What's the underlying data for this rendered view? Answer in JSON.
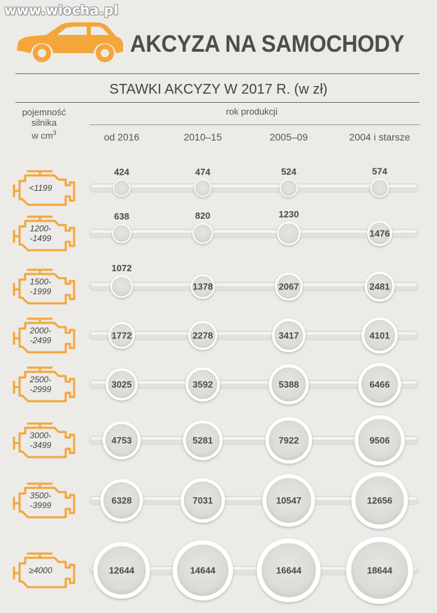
{
  "watermark": "www.wiocha.pl",
  "title": "AKCYZA NA SAMOCHODY",
  "subtitle": "STAWKI AKCYZY W 2017 R. (w zł)",
  "row_header": {
    "line1": "pojemność",
    "line2": "silnika",
    "line3": "w cm",
    "superscript": "3"
  },
  "column_group_header": "rok produkcji",
  "colors": {
    "accent": "#f4a63a",
    "background": "#ecebe8",
    "track": "#e2e1de",
    "bubble": "#e6e5e2",
    "bubble_rim": "#ffffff",
    "text": "#4a4a4a"
  },
  "icons": {
    "car": "car-icon",
    "engine": "engine-icon"
  },
  "chart_data": {
    "type": "table",
    "categories": [
      "od 2016",
      "2010–15",
      "2005–09",
      "2004 i starsze"
    ],
    "rows": [
      {
        "label": "<1199",
        "values": [
          424,
          474,
          524,
          574
        ]
      },
      {
        "label": "1200-\n-1499",
        "values": [
          638,
          820,
          1230,
          1476
        ]
      },
      {
        "label": "1500-\n-1999",
        "values": [
          1072,
          1378,
          2067,
          2481
        ]
      },
      {
        "label": "2000-\n-2499",
        "values": [
          1772,
          2278,
          3417,
          4101
        ]
      },
      {
        "label": "2500-\n-2999",
        "values": [
          3025,
          3592,
          5388,
          6466
        ]
      },
      {
        "label": "3000-\n-3499",
        "values": [
          4753,
          5281,
          7922,
          9506
        ]
      },
      {
        "label": "3500-\n-3999",
        "values": [
          6328,
          7031,
          10547,
          12656
        ]
      },
      {
        "label": "≥4000",
        "values": [
          12644,
          14644,
          16644,
          18644
        ]
      }
    ],
    "value_unit": "zł"
  }
}
